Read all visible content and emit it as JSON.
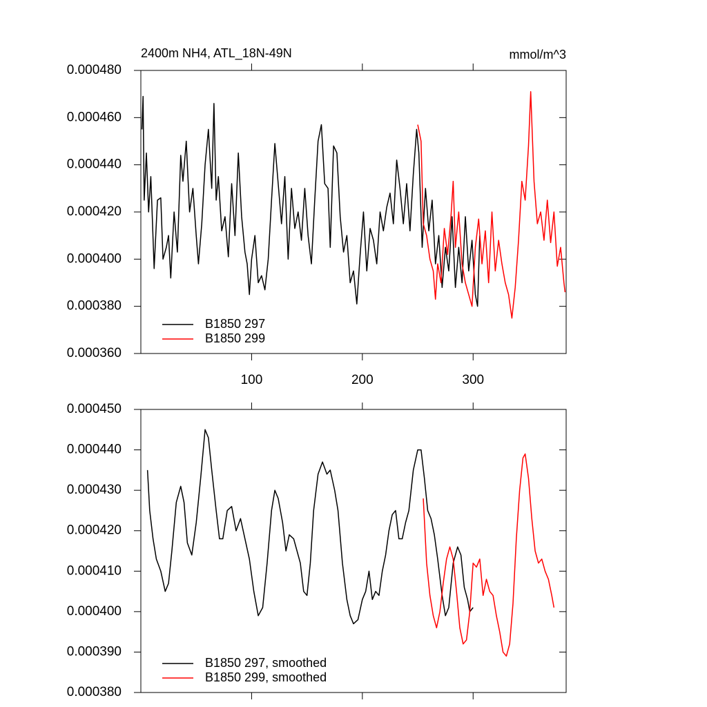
{
  "chart_data": [
    {
      "type": "line",
      "title": "2400m NH4, ATL_18N-49N",
      "units": "mmol/m^3",
      "xlim": [
        0,
        384
      ],
      "xticks": [
        100,
        200,
        300
      ],
      "xtick_labels": true,
      "ylim": [
        0.00036,
        0.00048
      ],
      "yticks": [
        {
          "value": 0.00036,
          "label": "0.000360"
        },
        {
          "value": 0.00038,
          "label": "0.000380"
        },
        {
          "value": 0.0004,
          "label": "0.000400"
        },
        {
          "value": 0.00042,
          "label": "0.000420"
        },
        {
          "value": 0.00044,
          "label": "0.000440"
        },
        {
          "value": 0.00046,
          "label": "0.000460"
        },
        {
          "value": 0.00048,
          "label": "0.000480"
        }
      ],
      "legend": "lower left",
      "series": [
        {
          "name": "B1850 297",
          "color": "#000000",
          "x": [
            1,
            2,
            3,
            5,
            7,
            9,
            12,
            15,
            18,
            20,
            23,
            25,
            27,
            30,
            33,
            36,
            38,
            41,
            44,
            47,
            50,
            52,
            55,
            58,
            61,
            64,
            66,
            68,
            70,
            73,
            76,
            79,
            82,
            85,
            88,
            91,
            94,
            96,
            98,
            100,
            103,
            106,
            109,
            112,
            115,
            118,
            121,
            124,
            127,
            130,
            133,
            136,
            139,
            142,
            145,
            148,
            151,
            154,
            157,
            160,
            163,
            166,
            169,
            171,
            174,
            177,
            180,
            183,
            186,
            189,
            192,
            195,
            198,
            201,
            204,
            207,
            210,
            213,
            216,
            219,
            222,
            225,
            228,
            231,
            234,
            237,
            240,
            243,
            246,
            249,
            251,
            254,
            257,
            260,
            263,
            266,
            269,
            272,
            275,
            278,
            281,
            284,
            287,
            290,
            293,
            296,
            299,
            302,
            304,
            306
          ],
          "values": [
            0.000455,
            0.000469,
            0.000425,
            0.000445,
            0.00042,
            0.000435,
            0.000396,
            0.000425,
            0.000426,
            0.0004,
            0.000405,
            0.00041,
            0.000392,
            0.00042,
            0.000403,
            0.000444,
            0.000433,
            0.00045,
            0.00042,
            0.00043,
            0.00041,
            0.000398,
            0.000415,
            0.00044,
            0.000455,
            0.00043,
            0.000466,
            0.000425,
            0.000435,
            0.000412,
            0.000418,
            0.000401,
            0.000432,
            0.00041,
            0.000445,
            0.000418,
            0.000403,
            0.000398,
            0.000385,
            0.0004,
            0.00041,
            0.00039,
            0.000393,
            0.000387,
            0.0004,
            0.000425,
            0.000449,
            0.000432,
            0.000415,
            0.000435,
            0.0004,
            0.00043,
            0.000413,
            0.00042,
            0.000408,
            0.00043,
            0.00041,
            0.000398,
            0.000425,
            0.00045,
            0.000457,
            0.000432,
            0.00043,
            0.000405,
            0.000448,
            0.000445,
            0.000418,
            0.000403,
            0.00041,
            0.00039,
            0.000395,
            0.000381,
            0.000402,
            0.00042,
            0.000395,
            0.000413,
            0.000408,
            0.000398,
            0.00042,
            0.000412,
            0.000422,
            0.000428,
            0.000415,
            0.000442,
            0.00043,
            0.000415,
            0.000432,
            0.000412,
            0.000436,
            0.000455,
            0.000445,
            0.000405,
            0.00043,
            0.000412,
            0.000425,
            0.000398,
            0.00041,
            0.000388,
            0.000405,
            0.000395,
            0.000418,
            0.000388,
            0.000405,
            0.00039,
            0.000418,
            0.000395,
            0.000408,
            0.000385,
            0.00038,
            0.00041
          ]
        },
        {
          "name": "B1850 299",
          "color": "#ff0000",
          "x": [
            250,
            253,
            255,
            258,
            261,
            264,
            266,
            268,
            271,
            274,
            277,
            280,
            282,
            284,
            287,
            290,
            293,
            296,
            299,
            302,
            305,
            308,
            311,
            314,
            317,
            320,
            323,
            326,
            329,
            332,
            335,
            338,
            341,
            344,
            347,
            350,
            352,
            355,
            358,
            361,
            364,
            367,
            370,
            373,
            376,
            379,
            382,
            383
          ],
          "values": [
            0.000457,
            0.00045,
            0.000415,
            0.00041,
            0.0004,
            0.000395,
            0.000383,
            0.000398,
            0.00039,
            0.000413,
            0.000402,
            0.000418,
            0.000433,
            0.000405,
            0.00042,
            0.000398,
            0.00039,
            0.000385,
            0.00038,
            0.000405,
            0.000417,
            0.000398,
            0.000412,
            0.00039,
            0.00042,
            0.000395,
            0.000408,
            0.000398,
            0.00039,
            0.000385,
            0.000375,
            0.000388,
            0.000408,
            0.000433,
            0.000425,
            0.000448,
            0.000471,
            0.000433,
            0.000415,
            0.00042,
            0.000408,
            0.000425,
            0.000407,
            0.00042,
            0.000397,
            0.000405,
            0.00039,
            0.000386
          ]
        }
      ]
    },
    {
      "type": "line",
      "xlim": [
        0,
        384
      ],
      "xticks": [
        100,
        200,
        300
      ],
      "xtick_labels": false,
      "ylim": [
        0.00038,
        0.00045
      ],
      "yticks": [
        {
          "value": 0.00038,
          "label": "0.000380"
        },
        {
          "value": 0.00039,
          "label": "0.000390"
        },
        {
          "value": 0.0004,
          "label": "0.000400"
        },
        {
          "value": 0.00041,
          "label": "0.000410"
        },
        {
          "value": 0.00042,
          "label": "0.000420"
        },
        {
          "value": 0.00043,
          "label": "0.000430"
        },
        {
          "value": 0.00044,
          "label": "0.000440"
        },
        {
          "value": 0.00045,
          "label": "0.000450"
        }
      ],
      "legend": "lower left",
      "series": [
        {
          "name": "B1850 297, smoothed",
          "color": "#000000",
          "x": [
            6,
            8,
            11,
            14,
            18,
            22,
            25,
            28,
            32,
            36,
            39,
            42,
            46,
            50,
            54,
            58,
            61,
            64,
            68,
            71,
            74,
            78,
            82,
            86,
            90,
            94,
            98,
            102,
            106,
            110,
            114,
            118,
            121,
            124,
            128,
            131,
            134,
            138,
            141,
            144,
            147,
            150,
            153,
            156,
            160,
            164,
            168,
            171,
            175,
            178,
            182,
            186,
            189,
            192,
            196,
            200,
            203,
            206,
            209,
            212,
            215,
            218,
            221,
            224,
            227,
            230,
            233,
            236,
            239,
            242,
            246,
            250,
            253,
            256,
            259,
            262,
            265,
            268,
            272,
            275,
            278,
            282,
            286,
            289,
            292,
            295,
            297,
            300
          ],
          "values": [
            0.000435,
            0.000425,
            0.000418,
            0.000413,
            0.00041,
            0.000405,
            0.000407,
            0.000415,
            0.000427,
            0.000431,
            0.000427,
            0.000417,
            0.000414,
            0.000422,
            0.000433,
            0.000445,
            0.000443,
            0.000435,
            0.000425,
            0.000418,
            0.000418,
            0.000425,
            0.000426,
            0.00042,
            0.000423,
            0.000418,
            0.000413,
            0.000405,
            0.000399,
            0.000401,
            0.000412,
            0.000425,
            0.00043,
            0.000428,
            0.000422,
            0.000415,
            0.000419,
            0.000418,
            0.000415,
            0.000412,
            0.000405,
            0.000404,
            0.000412,
            0.000425,
            0.000434,
            0.000437,
            0.000434,
            0.000435,
            0.00043,
            0.000425,
            0.000412,
            0.000403,
            0.000399,
            0.000397,
            0.000398,
            0.000403,
            0.000405,
            0.00041,
            0.000403,
            0.000405,
            0.000404,
            0.00041,
            0.000414,
            0.00042,
            0.000424,
            0.000425,
            0.000418,
            0.000418,
            0.000422,
            0.000425,
            0.000435,
            0.00044,
            0.00044,
            0.000433,
            0.000425,
            0.000423,
            0.000419,
            0.000413,
            0.000404,
            0.000399,
            0.000401,
            0.000412,
            0.000416,
            0.000414,
            0.000406,
            0.000403,
            0.0004,
            0.000401
          ]
        },
        {
          "name": "B1850 299, smoothed",
          "color": "#ff0000",
          "x": [
            255,
            258,
            261,
            264,
            267,
            270,
            273,
            276,
            279,
            282,
            285,
            288,
            291,
            294,
            297,
            300,
            303,
            306,
            309,
            312,
            315,
            318,
            321,
            324,
            327,
            330,
            333,
            336,
            339,
            342,
            345,
            347,
            350,
            353,
            356,
            359,
            362,
            365,
            368,
            371,
            373
          ],
          "values": [
            0.000428,
            0.000412,
            0.000404,
            0.000399,
            0.000396,
            0.0004,
            0.000407,
            0.000413,
            0.000416,
            0.000413,
            0.000405,
            0.000396,
            0.000392,
            0.000393,
            0.0004,
            0.000412,
            0.000411,
            0.000413,
            0.000404,
            0.000408,
            0.000405,
            0.000404,
            0.000399,
            0.000395,
            0.00039,
            0.000389,
            0.000392,
            0.000402,
            0.000418,
            0.00043,
            0.000438,
            0.000439,
            0.000433,
            0.000423,
            0.000415,
            0.000412,
            0.000413,
            0.00041,
            0.000408,
            0.000404,
            0.000401
          ]
        }
      ]
    }
  ]
}
